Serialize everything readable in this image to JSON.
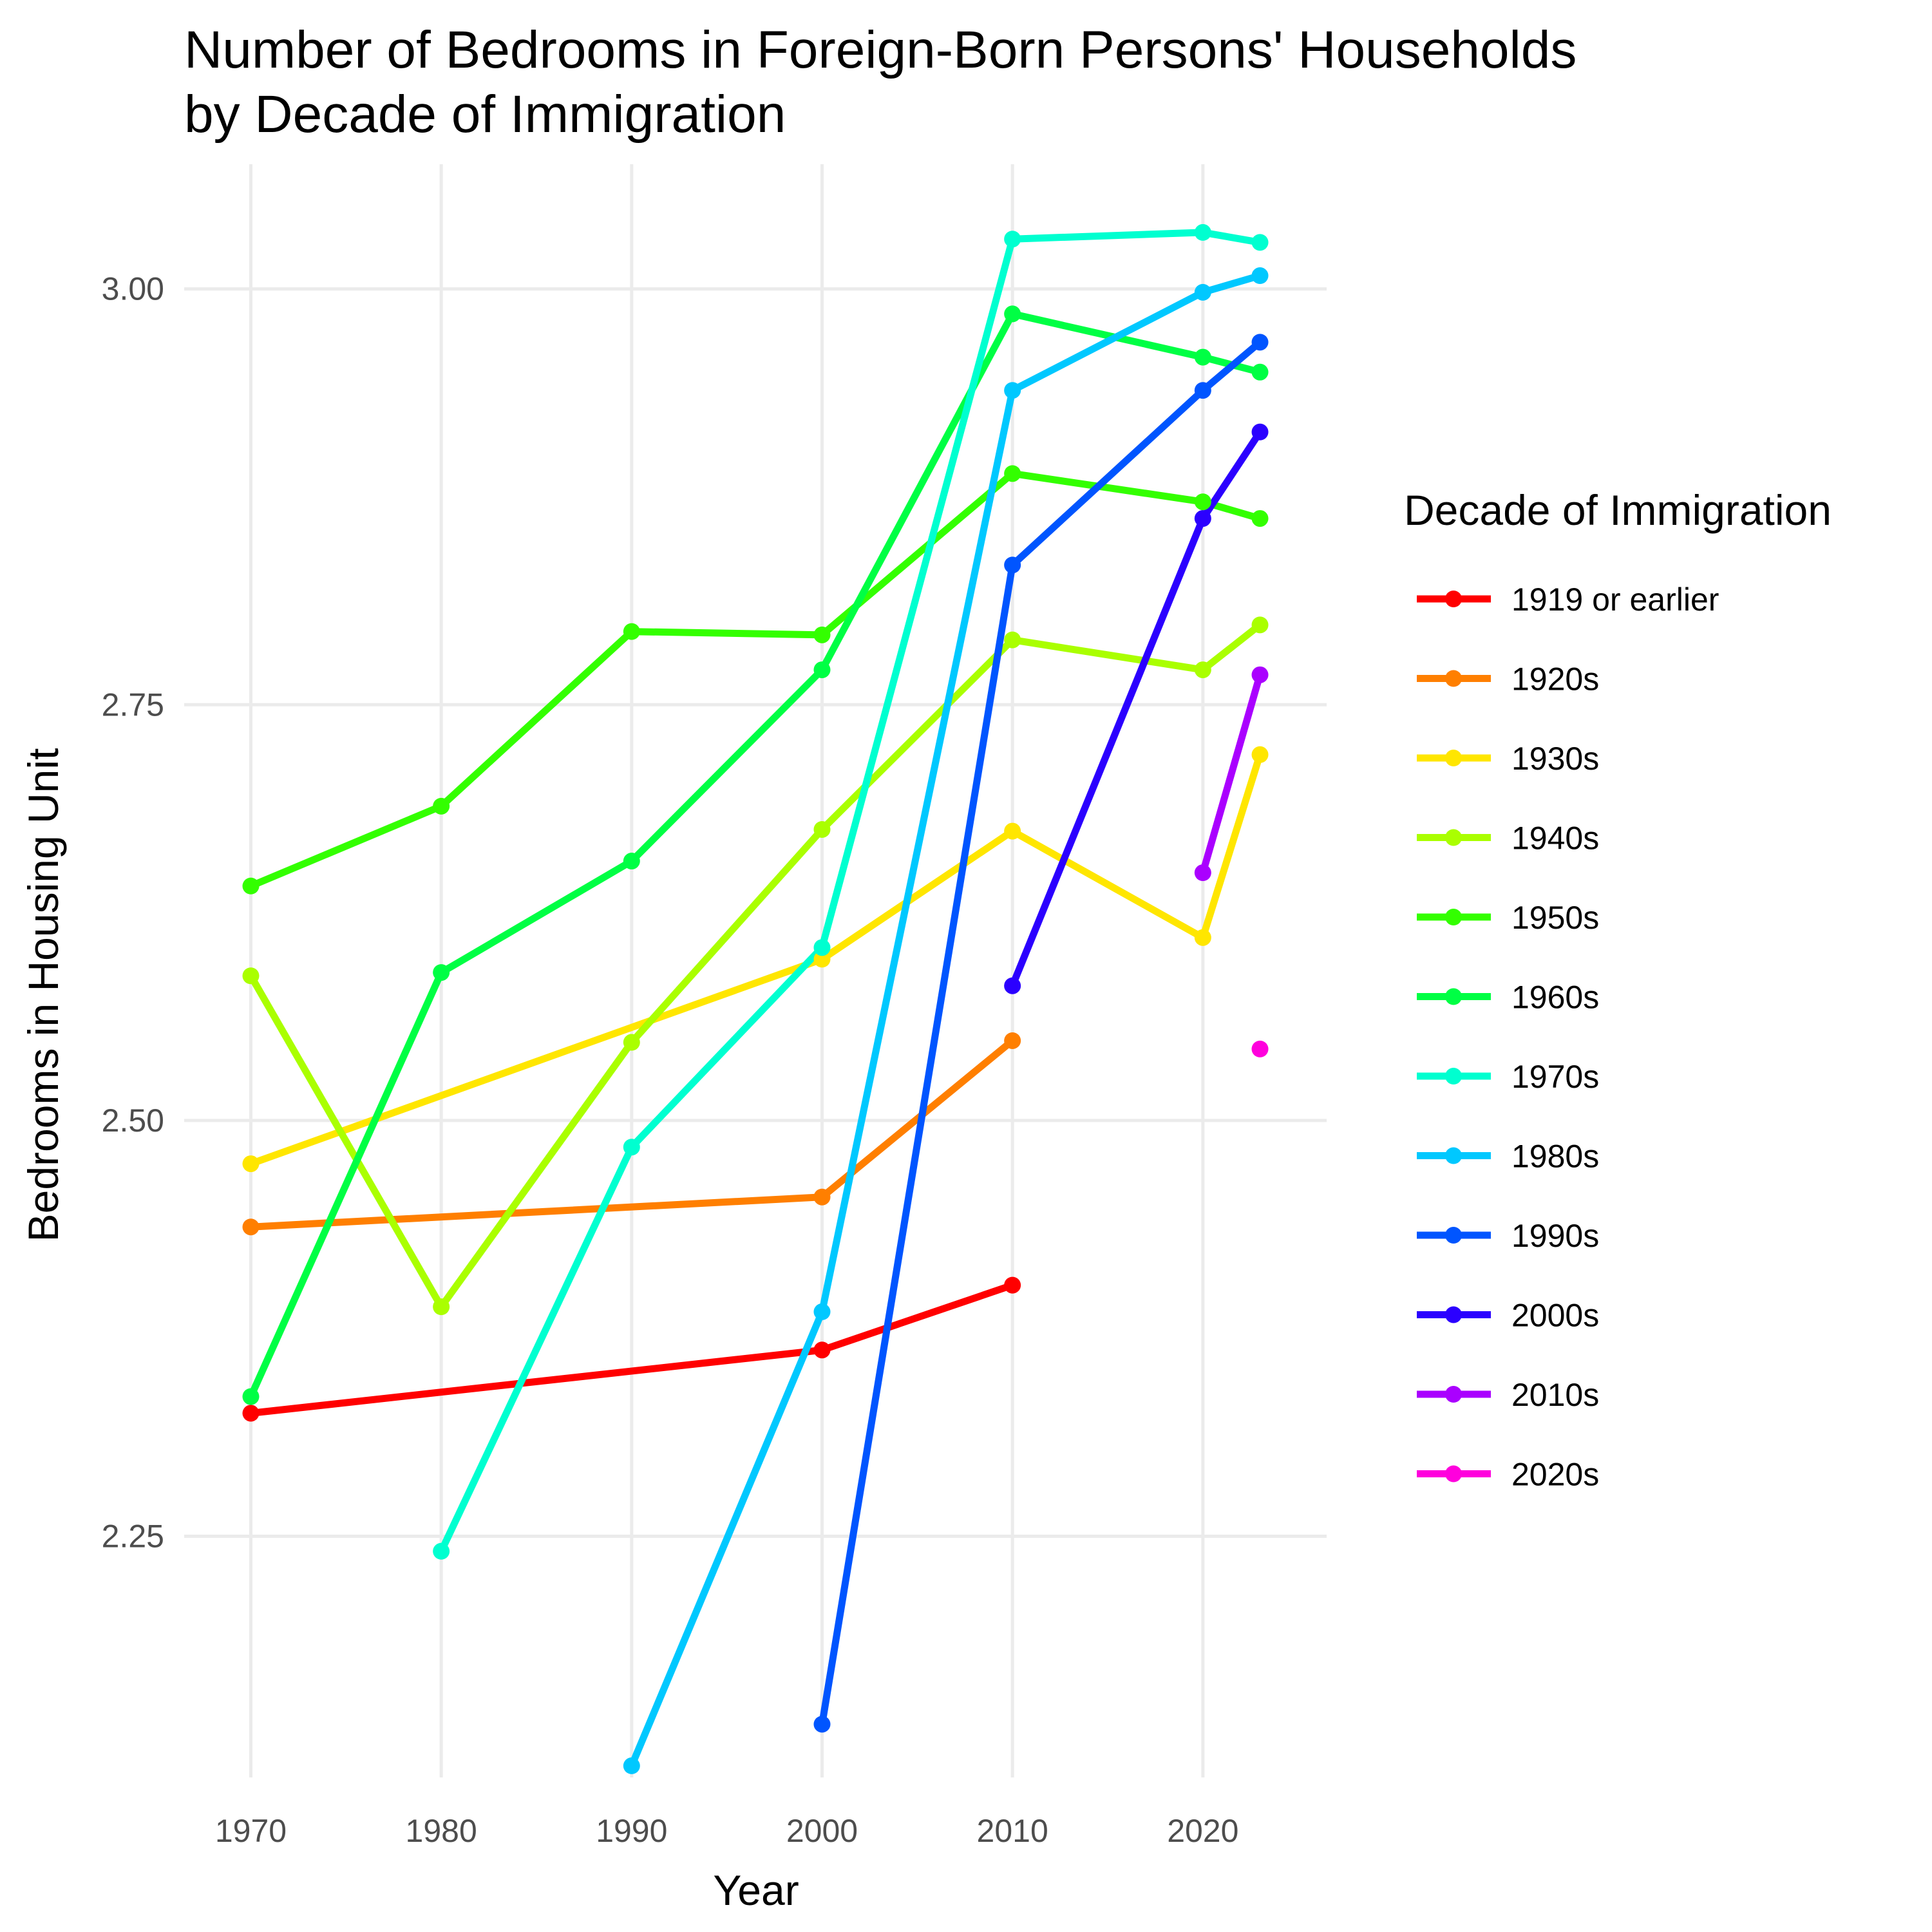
{
  "chart_data": {
    "type": "line",
    "title": [
      "Number of Bedrooms in Foreign-Born Persons' Households",
      "by Decade of Immigration"
    ],
    "xlabel": "Year",
    "ylabel": "Bedrooms in Housing Unit",
    "xlim": [
      1966.5,
      2026.5
    ],
    "ylim": [
      2.105,
      3.075
    ],
    "x_ticks": [
      1970,
      1980,
      1990,
      2000,
      2010,
      2020
    ],
    "y_ticks": [
      2.25,
      2.5,
      2.75,
      3.0
    ],
    "y_tick_labels": [
      "2.25",
      "2.50",
      "2.75",
      "3.00"
    ],
    "grid": true,
    "legend": {
      "title": "Decade of Immigration",
      "position": "right"
    },
    "series": [
      {
        "name": "1919 or earlier",
        "color": "#FF0000",
        "points": [
          [
            1970,
            2.324
          ],
          [
            2000,
            2.362
          ],
          [
            2010,
            2.401
          ]
        ]
      },
      {
        "name": "1920s",
        "color": "#FF7F00",
        "points": [
          [
            1970,
            2.436
          ],
          [
            2000,
            2.454
          ],
          [
            2010,
            2.548
          ]
        ]
      },
      {
        "name": "1930s",
        "color": "#FFE600",
        "points": [
          [
            1970,
            2.474
          ],
          [
            2000,
            2.597
          ],
          [
            2010,
            2.674
          ],
          [
            2020,
            2.61
          ],
          [
            2023,
            2.72
          ]
        ]
      },
      {
        "name": "1940s",
        "color": "#AAFF00",
        "points": [
          [
            1970,
            2.587
          ],
          [
            1980,
            2.388
          ],
          [
            1990,
            2.547
          ],
          [
            2000,
            2.675
          ],
          [
            2010,
            2.789
          ],
          [
            2020,
            2.771
          ],
          [
            2023,
            2.798
          ]
        ]
      },
      {
        "name": "1950s",
        "color": "#33FF00",
        "points": [
          [
            1970,
            2.641
          ],
          [
            1980,
            2.689
          ],
          [
            1990,
            2.794
          ],
          [
            2000,
            2.792
          ],
          [
            2010,
            2.889
          ],
          [
            2020,
            2.872
          ],
          [
            2023,
            2.862
          ]
        ]
      },
      {
        "name": "1960s",
        "color": "#00FF44",
        "points": [
          [
            1970,
            2.334
          ],
          [
            1980,
            2.589
          ],
          [
            1990,
            2.656
          ],
          [
            2000,
            2.771
          ],
          [
            2010,
            2.985
          ],
          [
            2020,
            2.959
          ],
          [
            2023,
            2.95
          ]
        ]
      },
      {
        "name": "1970s",
        "color": "#00FFD0",
        "points": [
          [
            1980,
            2.241
          ],
          [
            1990,
            2.484
          ],
          [
            2000,
            2.604
          ],
          [
            2010,
            3.03
          ],
          [
            2020,
            3.034
          ],
          [
            2023,
            3.028
          ]
        ]
      },
      {
        "name": "1980s",
        "color": "#00C8FF",
        "points": [
          [
            1990,
            2.112
          ],
          [
            2000,
            2.385
          ],
          [
            2010,
            2.939
          ],
          [
            2020,
            2.998
          ],
          [
            2023,
            3.008
          ]
        ]
      },
      {
        "name": "1990s",
        "color": "#0055FF",
        "points": [
          [
            2000,
            2.137
          ],
          [
            2010,
            2.834
          ],
          [
            2020,
            2.939
          ],
          [
            2023,
            2.968
          ]
        ]
      },
      {
        "name": "2000s",
        "color": "#2B00FF",
        "points": [
          [
            2010,
            2.581
          ],
          [
            2020,
            2.862
          ],
          [
            2023,
            2.914
          ]
        ]
      },
      {
        "name": "2010s",
        "color": "#AA00FF",
        "points": [
          [
            2020,
            2.649
          ],
          [
            2023,
            2.768
          ]
        ]
      },
      {
        "name": "2020s",
        "color": "#FF00DD",
        "points": [
          [
            2023,
            2.543
          ]
        ]
      }
    ]
  }
}
